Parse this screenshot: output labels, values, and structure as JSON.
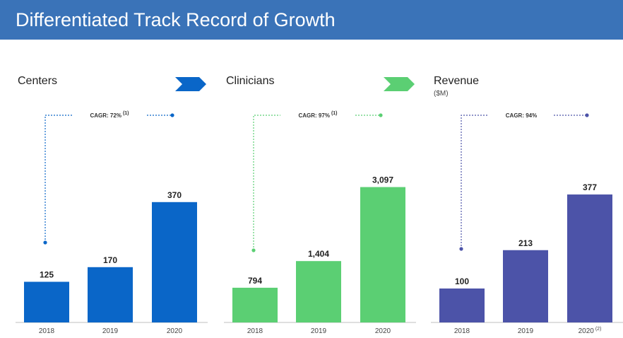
{
  "header": {
    "title": "Differentiated Track Record of Growth"
  },
  "colors": {
    "banner": "#3a73b8",
    "centers": "#0a66c8",
    "clinicians": "#5bcf73",
    "revenue": "#4c53a8"
  },
  "panels": [
    {
      "title": "Centers",
      "subtitle": "",
      "cagr": "CAGR: 72%",
      "cagr_note": "(1)",
      "color": "#0a66c8",
      "has_chevron": true
    },
    {
      "title": "Clinicians",
      "subtitle": "",
      "cagr": "CAGR: 97%",
      "cagr_note": "(1)",
      "color": "#5bcf73",
      "has_chevron": true
    },
    {
      "title": "Revenue",
      "subtitle": "($M)",
      "cagr": "CAGR: 94%",
      "cagr_note": "",
      "color": "#4c53a8",
      "has_chevron": false
    }
  ],
  "chart_data": [
    {
      "type": "bar",
      "title": "Centers",
      "categories": [
        "2018",
        "2019",
        "2020"
      ],
      "category_notes": [
        "",
        "",
        ""
      ],
      "values": [
        125,
        170,
        370
      ],
      "labels": [
        "125",
        "170",
        "370"
      ],
      "ylim": [
        0,
        400
      ]
    },
    {
      "type": "bar",
      "title": "Clinicians",
      "categories": [
        "2018",
        "2019",
        "2020"
      ],
      "category_notes": [
        "",
        "",
        ""
      ],
      "values": [
        794,
        1404,
        3097
      ],
      "labels": [
        "794",
        "1,404",
        "3,097"
      ],
      "ylim": [
        0,
        3300
      ]
    },
    {
      "type": "bar",
      "title": "Revenue",
      "categories": [
        "2018",
        "2019",
        "2020"
      ],
      "category_notes": [
        "",
        "",
        "(2)"
      ],
      "values": [
        100,
        213,
        377
      ],
      "labels": [
        "100",
        "213",
        "377"
      ],
      "ylim": [
        0,
        400
      ]
    }
  ]
}
